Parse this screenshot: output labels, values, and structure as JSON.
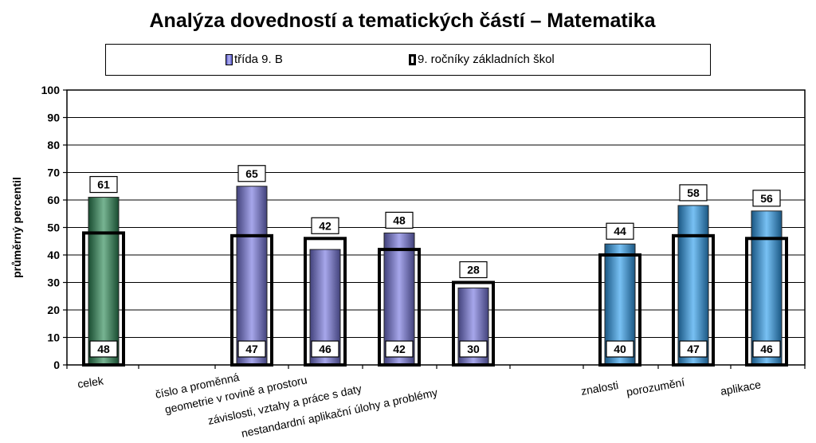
{
  "chart_data": {
    "type": "bar",
    "title": "Analýza dovedností a tematických částí – Matematika",
    "ylabel": "průměrný percentil",
    "xlabel": "",
    "ylim": [
      0,
      100
    ],
    "yticks": [
      0,
      10,
      20,
      30,
      40,
      50,
      60,
      70,
      80,
      90,
      100
    ],
    "grid": true,
    "legend_position": "top",
    "categories": [
      "celek",
      "číslo a proměnná",
      "geometrie v rovině a prostoru",
      "závislosti, vztahy a práce s daty",
      "nestandardní aplikační úlohy a problémy",
      "znalosti",
      "porozumění",
      "aplikace"
    ],
    "series": [
      {
        "name": "třída  9. B",
        "values": [
          61,
          65,
          42,
          48,
          28,
          44,
          58,
          56
        ]
      },
      {
        "name": "9. ročníky základních škol",
        "values": [
          48,
          47,
          46,
          42,
          30,
          40,
          47,
          46
        ]
      }
    ],
    "bar_colors": [
      "#2e8b57",
      "#7878e0",
      "#7878e0",
      "#7878e0",
      "#7878e0",
      "#2f9fee",
      "#2f9fee",
      "#2f9fee"
    ]
  }
}
